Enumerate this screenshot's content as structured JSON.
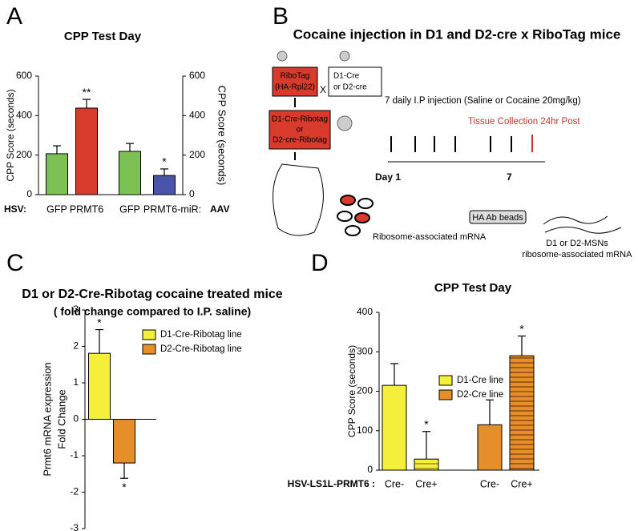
{
  "panels": [
    "A",
    "B",
    "C",
    "D"
  ],
  "chart_data": [
    {
      "type": "bar",
      "title": "CPP Test Day",
      "ylabel": "CPP Score (seconds)",
      "y2label": "CPP Score (seconds)",
      "categories": [
        "GFP",
        "PRMT6",
        "GFP",
        "PRMT6-miR:"
      ],
      "row_label": "HSV:",
      "row_label_right": "AAV",
      "values": [
        207,
        438,
        219,
        97
      ],
      "errors": [
        40,
        44,
        40,
        33
      ],
      "colors": [
        "#7dc155",
        "#d83a2b",
        "#7dc155",
        "#4a54a8"
      ],
      "bar_axis": [
        "y",
        "y",
        "y2",
        "y2"
      ],
      "annotations": [
        null,
        "**",
        null,
        "*"
      ],
      "ylim": [
        0,
        600
      ],
      "yticks": [
        0,
        200,
        400,
        600
      ],
      "y2lim": [
        0,
        600
      ],
      "y2ticks": [
        0,
        200,
        400,
        600
      ]
    },
    {
      "type": "bar",
      "title": "D1 or D2-Cre-Ribotag cocaine treated mice",
      "subtitle": "( fold change compared to I.P. saline)",
      "ylabel": [
        "Prmt6 mRNA expression",
        "Fold Change"
      ],
      "categories": [
        null,
        null
      ],
      "values": [
        1.81,
        -1.2
      ],
      "errors": [
        0.65,
        0.42
      ],
      "colors": [
        "#f3ef3a",
        "#e58f2b"
      ],
      "annotations": [
        "*",
        "*"
      ],
      "legend": [
        {
          "name": "D1-Cre-Ribotag line",
          "color": "#f3ef3a"
        },
        {
          "name": "D2-Cre-Ribotag line",
          "color": "#e58f2b"
        }
      ],
      "ylim": [
        -3,
        3
      ],
      "yticks": [
        -3,
        -2,
        -1,
        0,
        1,
        2,
        3
      ]
    },
    {
      "type": "bar",
      "title": "CPP Test Day",
      "ylabel": "CPP Score (seconds)",
      "row_label": "HSV-LS1L-PRMT6 :",
      "categories": [
        "Cre-",
        "Cre+",
        "Cre-",
        "Cre+"
      ],
      "values": [
        215,
        28,
        115,
        290
      ],
      "errors": [
        55,
        70,
        63,
        50
      ],
      "colors": [
        "#f3ef3a",
        "#f3ef3a",
        "#e58f2b",
        "#e58f2b"
      ],
      "hatched": [
        false,
        true,
        false,
        true
      ],
      "annotations": [
        null,
        "*",
        null,
        "*"
      ],
      "legend": [
        {
          "name": "D1-Cre line",
          "color": "#f3ef3a"
        },
        {
          "name": "D2-Cre line",
          "color": "#e58f2b"
        }
      ],
      "ylim": [
        0,
        400
      ],
      "yticks": [
        0,
        100,
        200,
        300,
        400
      ]
    }
  ],
  "diagram": {
    "title": "Cocaine injection in D1 and D2-cre x RiboTag mice",
    "ribotag": [
      "RiboTag",
      "(HA-Rpl22)"
    ],
    "cross": "X",
    "cre": [
      "D1-Cre",
      "or D2-cre"
    ],
    "cross_result": [
      "D1-Cre-Ribotag",
      "or",
      "D2-cre-Ribotag"
    ],
    "injection": "7 daily I.P injection (Saline or Cocaine 20mg/kg)",
    "collection": "Tissue Collection 24hr Post",
    "day_start": "Day 1",
    "day_end": "7",
    "beads": "HA Ab beads",
    "ribosome": "Ribosome-associated mRNA",
    "output": [
      "D1 or D2-MSNs",
      "ribosome-associated mRNA"
    ]
  }
}
